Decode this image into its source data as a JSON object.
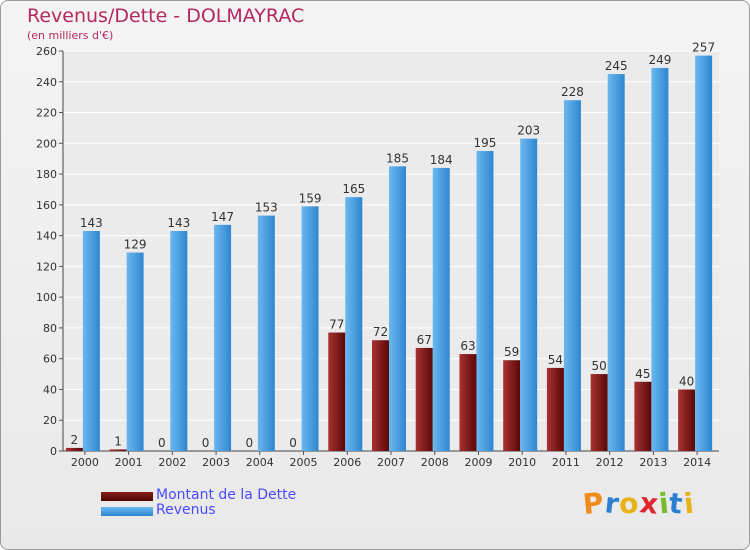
{
  "chart_data": {
    "type": "bar",
    "title": "Revenus/Dette - DOLMAYRAC",
    "subtitle": "(en milliers d'€)",
    "categories": [
      "2000",
      "2001",
      "2002",
      "2003",
      "2004",
      "2005",
      "2006",
      "2007",
      "2008",
      "2009",
      "2010",
      "2011",
      "2012",
      "2013",
      "2014"
    ],
    "series": [
      {
        "name": "Montant de la Dette",
        "color": "#7a1010",
        "values": [
          2,
          1,
          0,
          0,
          0,
          0,
          77,
          72,
          67,
          63,
          59,
          54,
          50,
          45,
          40
        ]
      },
      {
        "name": "Revenus",
        "color": "#4aa3e8",
        "values": [
          143,
          129,
          143,
          147,
          153,
          159,
          165,
          185,
          184,
          195,
          203,
          228,
          245,
          249,
          257
        ]
      }
    ],
    "ylim": [
      0,
      260
    ],
    "yticks": [
      0,
      20,
      40,
      60,
      80,
      100,
      120,
      140,
      160,
      180,
      200,
      220,
      240,
      260
    ],
    "grid": true,
    "legend_position": "bottom-left"
  },
  "logo": {
    "letters": [
      "P",
      "r",
      "o",
      "x",
      "i",
      "t",
      "i"
    ],
    "colors": [
      "#f08a1c",
      "#2b7fd0",
      "#e8b317",
      "#e0272c",
      "#7abb2a",
      "#2b7fd0",
      "#e8b317"
    ]
  }
}
